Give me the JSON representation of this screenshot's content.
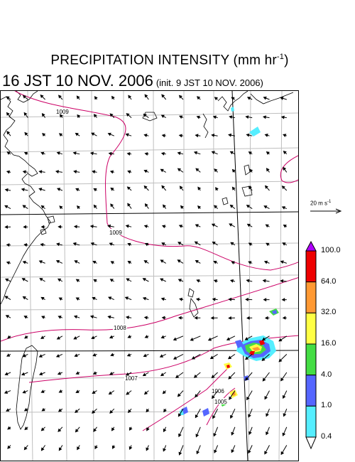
{
  "title": {
    "main": "PRECIPITATION INTENSITY (mm hr",
    "unit_sup": "-1",
    "main_close": ")",
    "time": "16 JST 10 NOV. 2006",
    "init": "(init. 9 JST 10 NOV. 2006)"
  },
  "reference_vector": {
    "label": "20 m s",
    "sup": "-1"
  },
  "colorbar": {
    "labels": [
      "100.0",
      "64.0",
      "32.0",
      "16.0",
      "4.0",
      "1.0",
      "0.4"
    ],
    "colors": [
      "#ee0000",
      "#ff9933",
      "#ffff44",
      "#44dd44",
      "#5566ff",
      "#55eeff"
    ],
    "top_color": "#b000ff"
  },
  "map": {
    "contour_labels": [
      "1009",
      "1009",
      "1008",
      "1007",
      "1006",
      "1005"
    ],
    "coast_color": "#000000",
    "isobar_color": "#cc0066",
    "grid_color": "#bfbfbf",
    "vectors": {
      "rows": 20,
      "cols": 17
    }
  }
}
